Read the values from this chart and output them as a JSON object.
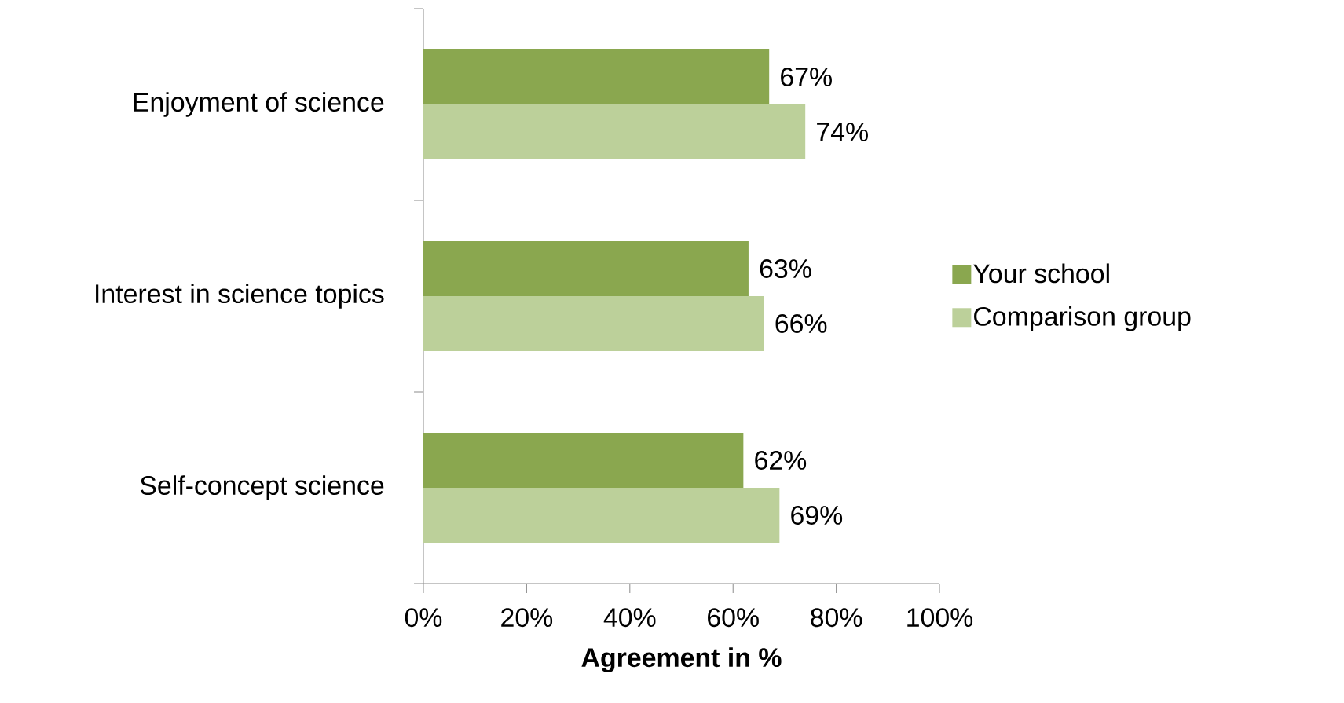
{
  "chart_data": {
    "type": "bar",
    "orientation": "horizontal",
    "xlabel": "Agreement  in %",
    "categories": [
      "Enjoyment of science",
      "Interest in science topics",
      "Self-concept science"
    ],
    "series": [
      {
        "name": "Your school",
        "color": "#8aa74f",
        "values": [
          67,
          63,
          62
        ],
        "value_labels": [
          "67%",
          "63%",
          "62%"
        ]
      },
      {
        "name": "Comparison group",
        "color": "#bcd09a",
        "values": [
          74,
          66,
          69
        ],
        "value_labels": [
          "74%",
          "66%",
          "69%"
        ]
      }
    ],
    "xlim": [
      0,
      100
    ],
    "xticks": [
      {
        "value": 0,
        "label": "0%"
      },
      {
        "value": 20,
        "label": "20%"
      },
      {
        "value": 40,
        "label": "40%"
      },
      {
        "value": 60,
        "label": "60%"
      },
      {
        "value": 80,
        "label": "80%"
      },
      {
        "value": 100,
        "label": "100%"
      }
    ],
    "legend": "right"
  }
}
